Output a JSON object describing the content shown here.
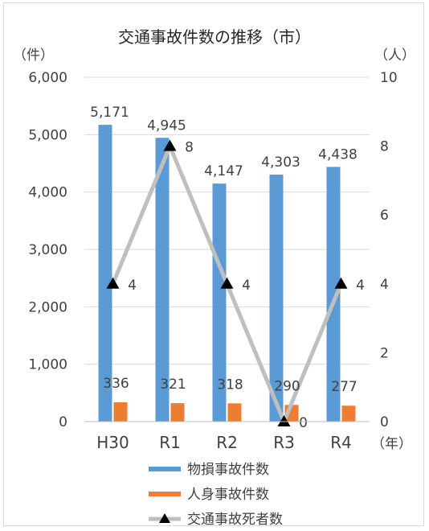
{
  "chart_data": {
    "type": "bar",
    "title": "交通事故件数の推移（市）",
    "left_unit": "（件）",
    "right_unit": "（人）",
    "x_unit": "（年）",
    "categories": [
      "H30",
      "R1",
      "R2",
      "R3",
      "R4"
    ],
    "y_left_ticks": [
      "0",
      "1,000",
      "2,000",
      "3,000",
      "4,000",
      "5,000",
      "6,000"
    ],
    "y_right_ticks": [
      "0",
      "2",
      "4",
      "6",
      "8",
      "10"
    ],
    "ylim_left": [
      0,
      6000
    ],
    "ylim_right": [
      0,
      10
    ],
    "grid": true,
    "legend_position": "bottom",
    "series": [
      {
        "name": "物損事故件数",
        "type": "bar",
        "axis": "left",
        "color": "#5b9bd5",
        "values": [
          5171,
          4945,
          4147,
          4303,
          4438
        ],
        "labels": [
          "5,171",
          "4,945",
          "4,147",
          "4,303",
          "4,438"
        ]
      },
      {
        "name": "人身事故件数",
        "type": "bar",
        "axis": "left",
        "color": "#ed7d31",
        "values": [
          336,
          321,
          318,
          290,
          277
        ],
        "labels": [
          "336",
          "321",
          "318",
          "290",
          "277"
        ]
      },
      {
        "name": "交通事故死者数",
        "type": "line",
        "axis": "right",
        "color": "#bfbfbf",
        "marker": "triangle",
        "values": [
          4,
          8,
          4,
          0,
          4
        ],
        "labels": [
          "4",
          "8",
          "4",
          "0",
          "4"
        ]
      }
    ]
  }
}
